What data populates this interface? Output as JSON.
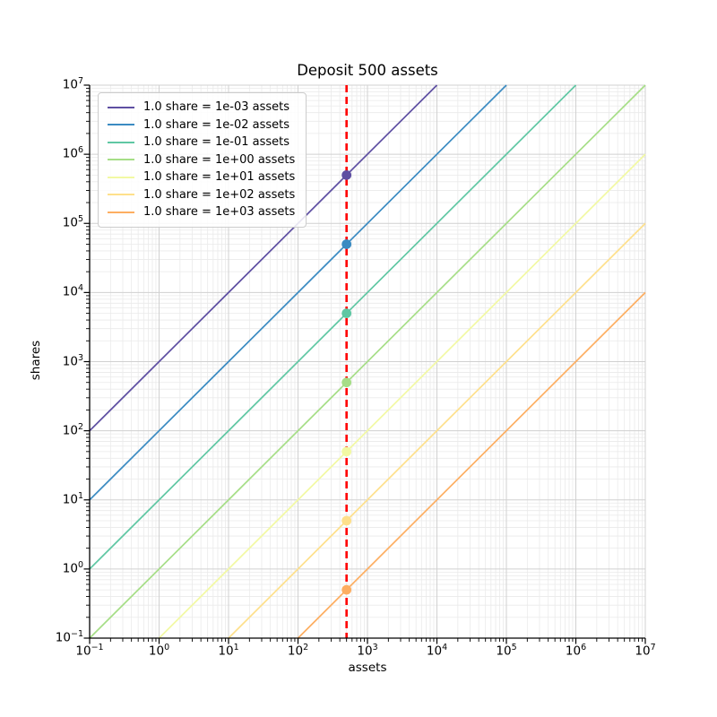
{
  "figure": {
    "background": "#ffffff"
  },
  "chart_data": {
    "type": "line",
    "title": "Deposit 500 assets",
    "xlabel": "assets",
    "ylabel": "shares",
    "xscale": "log",
    "yscale": "log",
    "xlim": [
      0.1,
      10000000
    ],
    "ylim": [
      0.1,
      10000000
    ],
    "x_tick_exponents": [
      -1,
      0,
      1,
      2,
      3,
      4,
      5,
      6,
      7
    ],
    "y_tick_exponents": [
      -1,
      0,
      1,
      2,
      3,
      4,
      5,
      6,
      7
    ],
    "grid": {
      "major": true,
      "minor": true,
      "major_color": "#d0d0d0",
      "minor_color": "#eaeaea"
    },
    "spine_color": "#000000",
    "legend_position": "upper-left",
    "deposit_line": {
      "assets": 500,
      "orientation": "vertical",
      "style": "dashed",
      "color": "#ff0000"
    },
    "series": [
      {
        "label": "1.0 share = 1e-03 assets",
        "assets_per_share": 0.001,
        "color": "#5e4fa2",
        "marker": {
          "assets": 500,
          "shares": 500000
        }
      },
      {
        "label": "1.0 share = 1e-02 assets",
        "assets_per_share": 0.01,
        "color": "#3b8bc2",
        "marker": {
          "assets": 500,
          "shares": 50000
        }
      },
      {
        "label": "1.0 share = 1e-01 assets",
        "assets_per_share": 0.1,
        "color": "#5fc7a3",
        "marker": {
          "assets": 500,
          "shares": 5000
        }
      },
      {
        "label": "1.0 share = 1e+00 assets",
        "assets_per_share": 1,
        "color": "#a6de87",
        "marker": {
          "assets": 500,
          "shares": 500
        }
      },
      {
        "label": "1.0 share = 1e+01 assets",
        "assets_per_share": 10,
        "color": "#f2f9a3",
        "marker": {
          "assets": 500,
          "shares": 50
        }
      },
      {
        "label": "1.0 share = 1e+02 assets",
        "assets_per_share": 100,
        "color": "#fee08b",
        "marker": {
          "assets": 500,
          "shares": 5
        }
      },
      {
        "label": "1.0 share = 1e+03 assets",
        "assets_per_share": 1000,
        "color": "#fdae61",
        "marker": {
          "assets": 500,
          "shares": 0.5
        }
      }
    ]
  }
}
